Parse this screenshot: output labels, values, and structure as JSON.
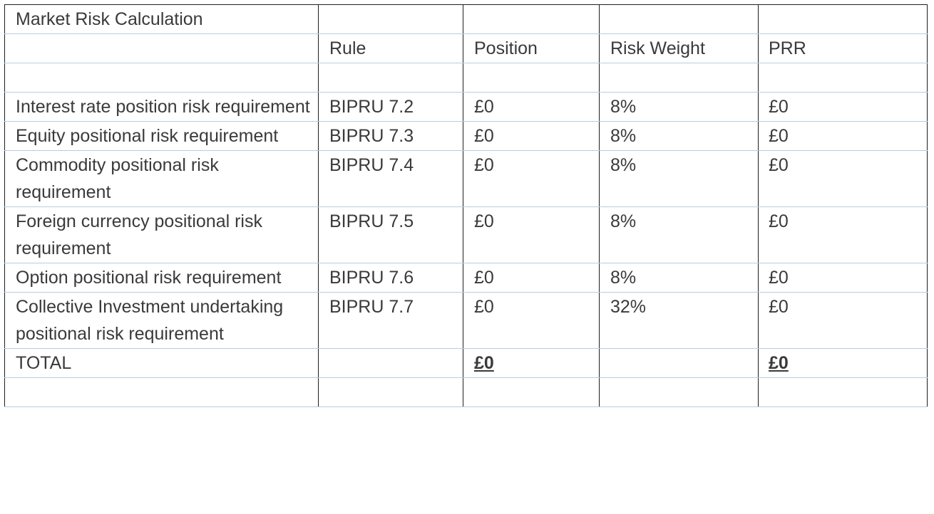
{
  "table": {
    "title": "Market Risk Calculation",
    "headers": [
      "Rule",
      "Position",
      "Risk Weight",
      "PRR"
    ],
    "rows": [
      {
        "label": "Interest rate position risk requirement",
        "rule": "BIPRU 7.2",
        "position": "£0",
        "risk_weight": "8%",
        "prr": "£0"
      },
      {
        "label": "Equity positional risk requirement",
        "rule": "BIPRU 7.3",
        "position": "£0",
        "risk_weight": "8%",
        "prr": "£0"
      },
      {
        "label": "Commodity positional risk requirement",
        "rule": "BIPRU 7.4",
        "position": "£0",
        "risk_weight": "8%",
        "prr": "£0"
      },
      {
        "label": "Foreign currency positional risk requirement",
        "rule": "BIPRU 7.5",
        "position": "£0",
        "risk_weight": "8%",
        "prr": "£0"
      },
      {
        "label": "Option positional risk requirement",
        "rule": "BIPRU 7.6",
        "position": "£0",
        "risk_weight": "8%",
        "prr": "£0"
      },
      {
        "label": "Collective Investment undertaking positional risk requirement",
        "rule": "BIPRU 7.7",
        "position": "£0",
        "risk_weight": "32%",
        "prr": "£0"
      }
    ],
    "total": {
      "label": "TOTAL",
      "position": "£0",
      "prr": "£0"
    }
  }
}
